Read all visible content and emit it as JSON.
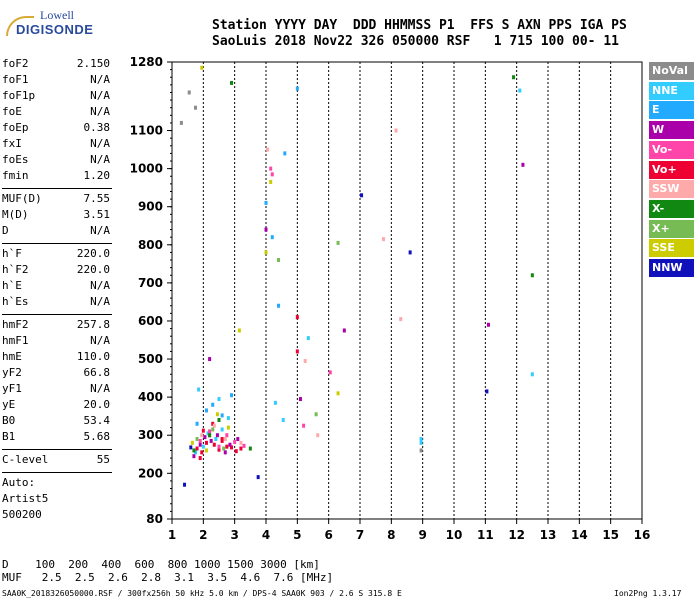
{
  "logo": {
    "line1": "Lowell",
    "line2": "DIGISONDE"
  },
  "header": {
    "row1": "Station YYYY DAY  DDD HHMMSS P1  FFS S AXN PPS IGA PS",
    "row2": "SaoLuis 2018 Nov22 326 050000 RSF   1 715 100 00- 11"
  },
  "params": {
    "group1": [
      [
        "foF2",
        "2.150"
      ],
      [
        "foF1",
        "N/A"
      ],
      [
        "foF1p",
        "N/A"
      ],
      [
        "foE",
        "N/A"
      ],
      [
        "foEp",
        "0.38"
      ],
      [
        "fxI",
        "N/A"
      ],
      [
        "foEs",
        "N/A"
      ],
      [
        "fmin",
        "1.20"
      ]
    ],
    "group2": [
      [
        "MUF(D)",
        "7.55"
      ],
      [
        "M(D)",
        "3.51"
      ],
      [
        "D",
        "N/A"
      ]
    ],
    "group3": [
      [
        "h`F",
        "220.0"
      ],
      [
        "h`F2",
        "220.0"
      ],
      [
        "h`E",
        "N/A"
      ],
      [
        "h`Es",
        "N/A"
      ]
    ],
    "group4": [
      [
        "hmF2",
        "257.8"
      ],
      [
        "hmF1",
        "N/A"
      ],
      [
        "hmE",
        "110.0"
      ],
      [
        "yF2",
        "66.8"
      ],
      [
        "yF1",
        "N/A"
      ],
      [
        "yE",
        "20.0"
      ],
      [
        "B0",
        "53.4"
      ],
      [
        "B1",
        "5.68"
      ]
    ],
    "clevel": [
      "C-level",
      "55"
    ],
    "auto": [
      "Auto:",
      "Artist5",
      "500200"
    ]
  },
  "legend": [
    {
      "label": "NoVal",
      "color": "#8c8c8c"
    },
    {
      "label": "NNE",
      "color": "#33ccff"
    },
    {
      "label": "E",
      "color": "#22aaff"
    },
    {
      "label": "W",
      "color": "#aa00aa"
    },
    {
      "label": "Vo-",
      "color": "#ff44aa"
    },
    {
      "label": "Vo+",
      "color": "#ee0033"
    },
    {
      "label": "SSW",
      "color": "#ffaaaa"
    },
    {
      "label": "X-",
      "color": "#118811"
    },
    {
      "label": "X+",
      "color": "#77bb55"
    },
    {
      "label": "SSE",
      "color": "#cccc00"
    },
    {
      "label": "NNW",
      "color": "#1111bb"
    }
  ],
  "footer": {
    "row1": "D    100  200  400  600  800 1000 1500 3000 [km]",
    "row2": "MUF   2.5  2.5  2.6  2.8  3.1  3.5  4.6  7.6 [MHz]"
  },
  "bottom_line": "SAA0K_2018326050000.RSF / 300fx256h 50 kHz 5.0 km / DPS-4 SAA0K 903 / 2.6 S 315.8 E",
  "version": "Ion2Png 1.3.17",
  "chart_data": {
    "type": "scatter",
    "title": "",
    "xlabel": "",
    "ylabel": "",
    "xlim": [
      1,
      16
    ],
    "ylim": [
      80,
      1280
    ],
    "x_ticks": [
      1,
      2,
      3,
      4,
      5,
      6,
      7,
      8,
      9,
      10,
      11,
      12,
      13,
      14,
      15,
      16
    ],
    "y_ticks": [
      80,
      200,
      300,
      400,
      500,
      600,
      700,
      800,
      900,
      1000,
      1100,
      1280
    ],
    "grid": "vertical dashed at integer frequencies",
    "series": [
      {
        "color": "#ee0033",
        "x": [
          1.8,
          1.95,
          2.1,
          2.2,
          2.35,
          2.5,
          2.6,
          2.75,
          2.9,
          3.05,
          3.2,
          2.0,
          2.3,
          2.6,
          1.9,
          5.0,
          5.0
        ],
        "y": [
          265,
          255,
          280,
          300,
          275,
          262,
          290,
          270,
          268,
          258,
          265,
          312,
          330,
          285,
          240,
          520,
          610
        ]
      },
      {
        "color": "#aa00aa",
        "x": [
          1.7,
          1.9,
          2.05,
          2.25,
          2.45,
          2.7,
          2.85,
          3.1,
          2.2,
          4.0,
          5.1,
          12.2,
          11.1,
          6.5
        ],
        "y": [
          245,
          275,
          295,
          285,
          300,
          255,
          275,
          290,
          500,
          840,
          395,
          1010,
          590,
          575
        ]
      },
      {
        "color": "#33ccff",
        "x": [
          1.75,
          2.0,
          2.15,
          2.4,
          2.6,
          2.8,
          1.85,
          2.5,
          4.3,
          4.55,
          5.35,
          8.95,
          8.95,
          12.1,
          12.5
        ],
        "y": [
          255,
          270,
          305,
          290,
          315,
          345,
          420,
          395,
          385,
          340,
          555,
          290,
          280,
          1205,
          460
        ]
      },
      {
        "color": "#22aaff",
        "x": [
          1.8,
          2.1,
          2.3,
          2.6,
          2.9,
          4.0,
          4.2,
          4.6,
          5.0,
          4.4
        ],
        "y": [
          330,
          365,
          380,
          352,
          405,
          910,
          820,
          1040,
          1210,
          640
        ]
      },
      {
        "color": "#ff44aa",
        "x": [
          1.9,
          2.2,
          2.5,
          2.75,
          3.0,
          3.3,
          4.15,
          4.2,
          5.2,
          6.05
        ],
        "y": [
          285,
          310,
          270,
          300,
          282,
          272,
          1000,
          985,
          325,
          465
        ]
      },
      {
        "color": "#ffaaaa",
        "x": [
          1.95,
          2.35,
          2.7,
          3.2,
          4.05,
          5.25,
          7.75,
          8.15,
          8.3,
          5.65
        ],
        "y": [
          300,
          325,
          290,
          280,
          1050,
          495,
          815,
          1100,
          605,
          300
        ]
      },
      {
        "color": "#118811",
        "x": [
          1.7,
          2.2,
          2.5,
          12.5,
          11.9,
          3.5,
          2.9
        ],
        "y": [
          260,
          300,
          340,
          720,
          1240,
          265,
          1225
        ]
      },
      {
        "color": "#77bb55",
        "x": [
          1.8,
          2.3,
          2.65,
          6.3,
          5.6,
          4.4
        ],
        "y": [
          290,
          315,
          265,
          805,
          355,
          760
        ]
      },
      {
        "color": "#cccc00",
        "x": [
          1.65,
          2.1,
          2.45,
          2.8,
          4.15,
          6.3,
          4.0,
          3.15,
          1.95
        ],
        "y": [
          280,
          260,
          355,
          320,
          965,
          410,
          780,
          575,
          1265
        ]
      },
      {
        "color": "#1111bb",
        "x": [
          1.6,
          7.05,
          8.6,
          11.05,
          1.4,
          3.75
        ],
        "y": [
          268,
          930,
          780,
          415,
          170,
          190
        ]
      },
      {
        "color": "#8c8c8c",
        "x": [
          1.3,
          1.55,
          1.75,
          8.95
        ],
        "y": [
          1120,
          1200,
          1160,
          260
        ]
      }
    ]
  }
}
